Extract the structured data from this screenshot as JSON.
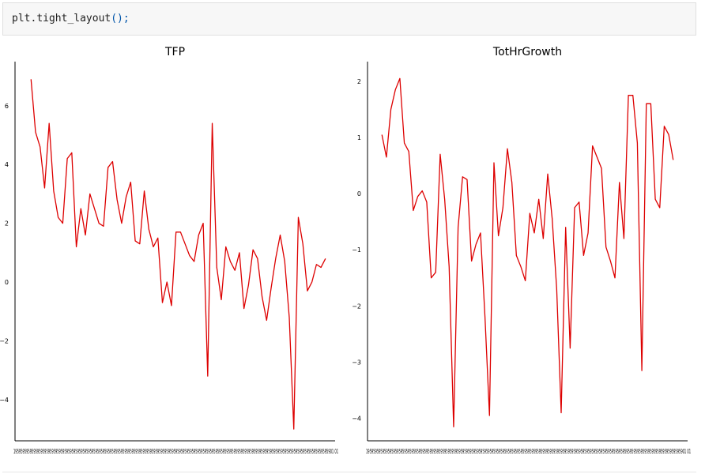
{
  "code": {
    "object": "plt",
    "method": "tight_layout",
    "call": "();"
  },
  "chart_data": [
    {
      "type": "line",
      "title": "TFP",
      "xlabel": "",
      "ylabel": "",
      "ylim": [
        -5.4,
        7.5
      ],
      "yticks": [
        -4,
        -2,
        0,
        2,
        4,
        6
      ],
      "ytick_labels": [
        "−4",
        "−2",
        "0",
        "2",
        "4",
        "6"
      ],
      "xtick_labels": "19595959595959595959595959595959595959595959595959595959595959595959595959595959595959595959595959595959595959595959595959595959595959595959595959595959595959595959595959595901 01",
      "line_color": "#dd0000",
      "grid": false,
      "values": [
        6.9,
        5.1,
        4.6,
        3.2,
        5.4,
        3.1,
        2.2,
        2.0,
        4.2,
        4.4,
        1.2,
        2.5,
        1.6,
        3.0,
        2.5,
        2.0,
        1.9,
        3.9,
        4.1,
        2.8,
        2.0,
        2.9,
        3.4,
        1.4,
        1.3,
        3.1,
        1.8,
        1.2,
        1.5,
        -0.7,
        0.0,
        -0.8,
        1.7,
        1.7,
        1.3,
        0.9,
        0.7,
        1.6,
        2.0,
        -3.2,
        5.4,
        0.5,
        -0.6,
        1.2,
        0.7,
        0.4,
        1.0,
        -0.9,
        -0.1,
        1.1,
        0.8,
        -0.5,
        -1.3,
        -0.2,
        0.8,
        1.6,
        0.7,
        -1.2,
        -5.0,
        2.2,
        1.3,
        -0.3,
        -0.0,
        0.6,
        0.5,
        0.8
      ]
    },
    {
      "type": "line",
      "title": "TotHrGrowth",
      "xlabel": "",
      "ylabel": "",
      "ylim": [
        -4.4,
        2.35
      ],
      "yticks": [
        -4,
        -3,
        -2,
        -1,
        0,
        1,
        2
      ],
      "ytick_labels": [
        "−4",
        "−3",
        "−2",
        "−1",
        "0",
        "1",
        "2"
      ],
      "xtick_labels": "19595959595959595959595959595959595959595959595959595959595959595959595959595959595959595959595959595959595959595959595959595959595959595959595959595959595959595959595959595901 01",
      "line_color": "#dd0000",
      "grid": false,
      "values": [
        1.05,
        0.65,
        1.5,
        1.85,
        2.05,
        0.9,
        0.75,
        -0.3,
        -0.05,
        0.05,
        -0.15,
        -1.5,
        -1.4,
        0.7,
        -0.1,
        -1.3,
        -4.15,
        -0.6,
        0.3,
        0.25,
        -1.2,
        -0.9,
        -0.7,
        -2.2,
        -3.95,
        0.55,
        -0.75,
        -0.25,
        0.8,
        0.2,
        -1.1,
        -1.3,
        -1.55,
        -0.35,
        -0.7,
        -0.1,
        -0.8,
        0.35,
        -0.45,
        -1.7,
        -3.9,
        -0.6,
        -2.75,
        -0.25,
        -0.15,
        -1.1,
        -0.7,
        0.85,
        0.65,
        0.45,
        -0.95,
        -1.2,
        -1.5,
        0.2,
        -0.8,
        1.75,
        1.75,
        0.9,
        -3.15,
        1.6,
        1.6,
        -0.1,
        -0.25,
        1.2,
        1.05,
        0.6
      ]
    }
  ]
}
